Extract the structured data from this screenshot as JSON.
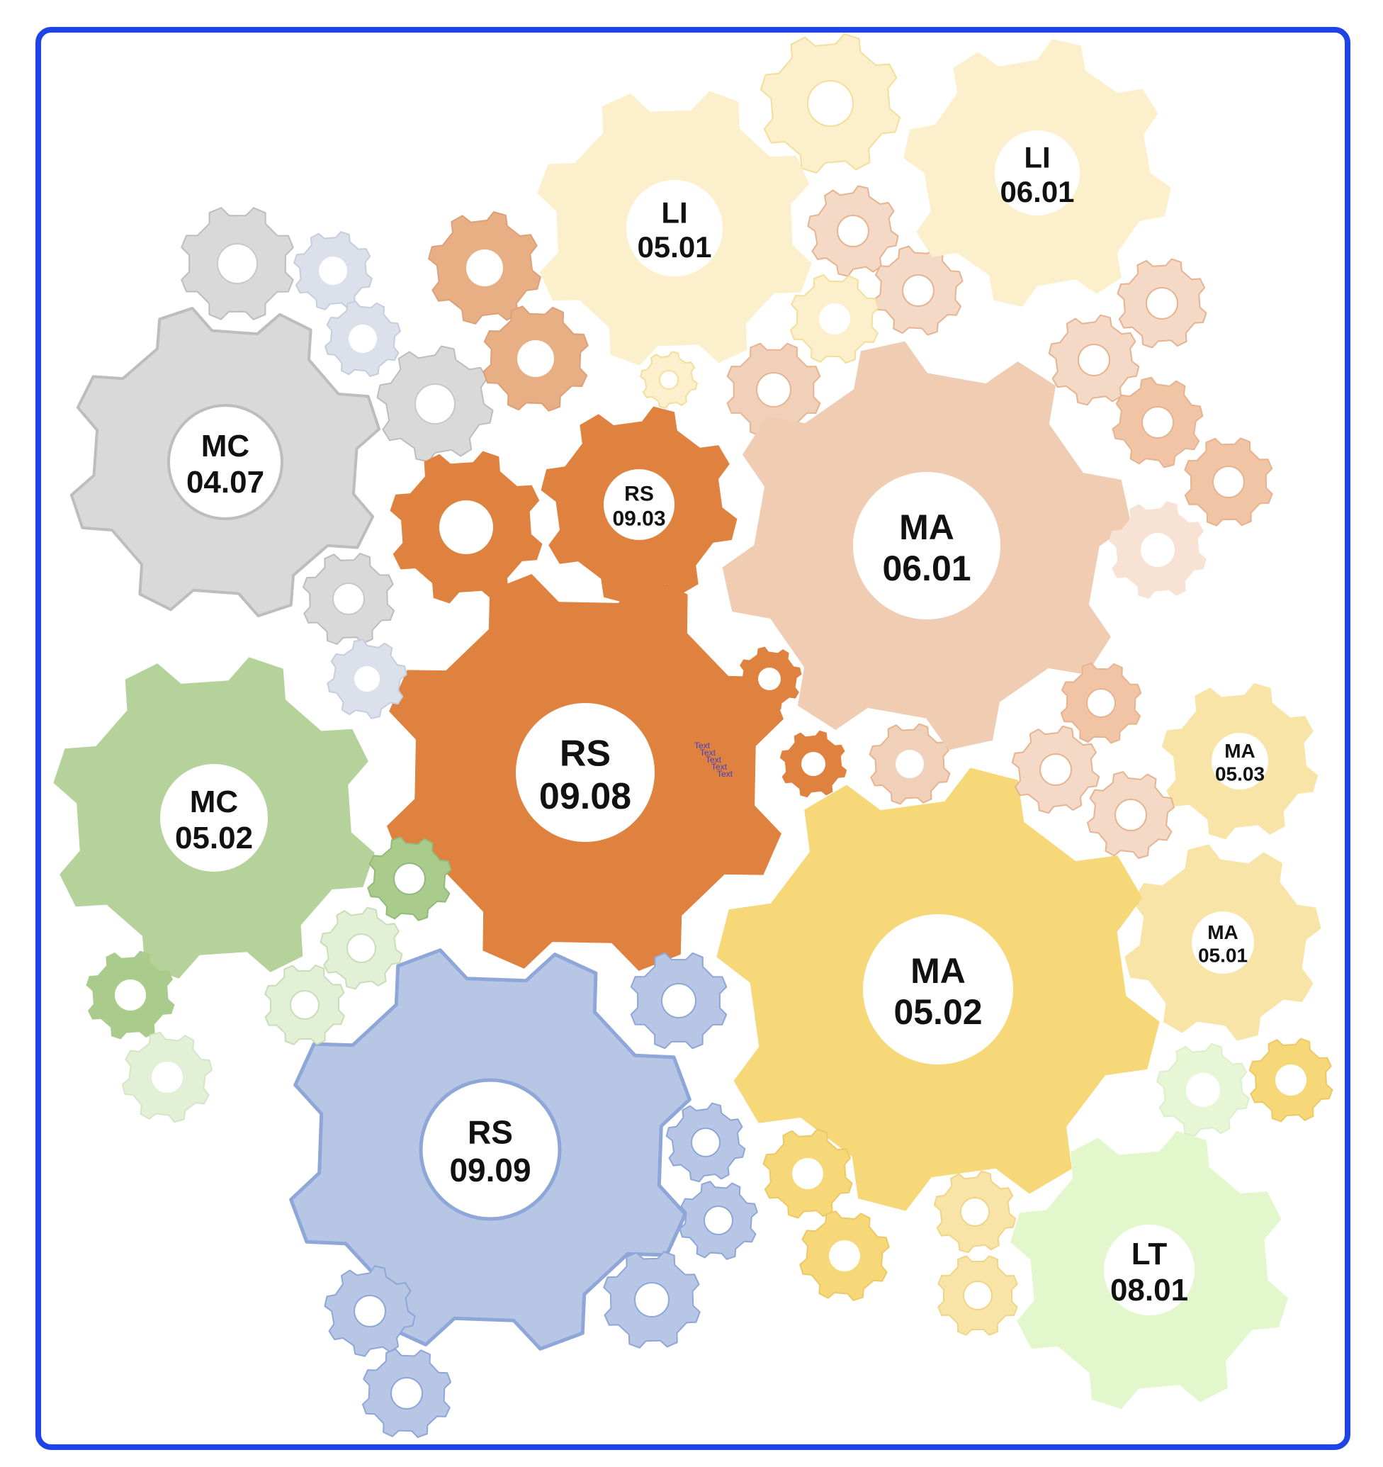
{
  "diagram": {
    "frame_color": "#1f44e6",
    "palette": {
      "orange": "#e0823f",
      "peach": "#f0ccb2",
      "light_peach": "#f3d9c6",
      "pale_yellow": "#fcf0cc",
      "yellow": "#f6d878",
      "light_yellow": "#f9e4a8",
      "gray": "#d9d9d9",
      "gray_stroke": "#bdbdbd",
      "blue_gray": "#dbe0ea",
      "blue": "#b6c6e4",
      "blue_stroke": "#8ea6d8",
      "green": "#b4d29a",
      "light_green": "#e2f0d6",
      "pale_green": "#e3f7cc"
    },
    "labeled_gears": [
      {
        "id": "li-05-01",
        "code": "LI",
        "number": "05.01"
      },
      {
        "id": "li-06-01",
        "code": "LI",
        "number": "06.01"
      },
      {
        "id": "mc-04-07",
        "code": "MC",
        "number": "04.07"
      },
      {
        "id": "rs-09-03",
        "code": "RS",
        "number": "09.03"
      },
      {
        "id": "ma-06-01",
        "code": "MA",
        "number": "06.01"
      },
      {
        "id": "mc-05-02",
        "code": "MC",
        "number": "05.02"
      },
      {
        "id": "rs-09-08",
        "code": "RS",
        "number": "09.08"
      },
      {
        "id": "ma-05-03",
        "code": "MA",
        "number": "05.03"
      },
      {
        "id": "ma-05-01",
        "code": "MA",
        "number": "05.01"
      },
      {
        "id": "ma-05-02",
        "code": "MA",
        "number": "05.02"
      },
      {
        "id": "rs-09-09",
        "code": "RS",
        "number": "09.09"
      },
      {
        "id": "lt-08-01",
        "code": "LT",
        "number": "08.01"
      }
    ],
    "stray_text": "Text"
  }
}
